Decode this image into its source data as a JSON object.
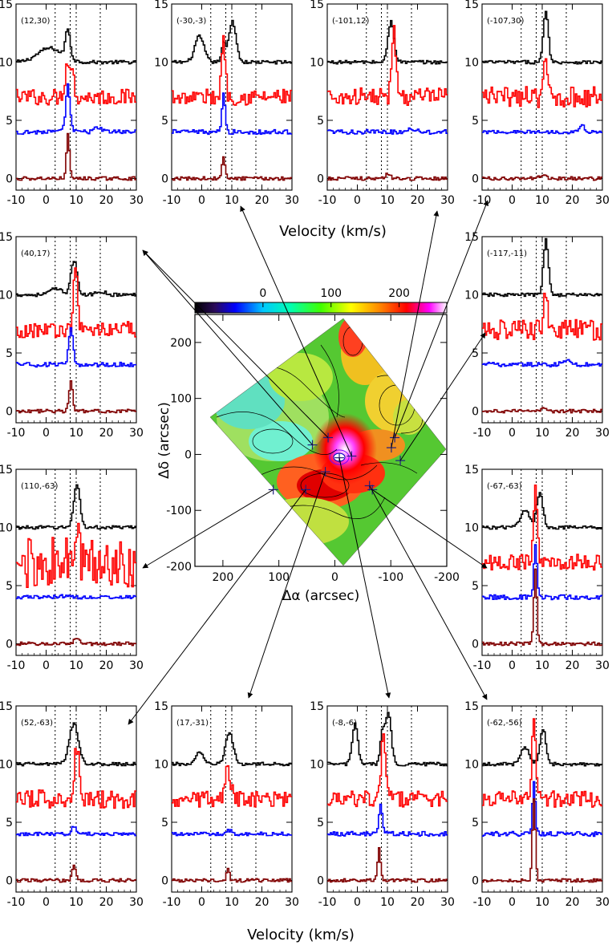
{
  "figure": {
    "velocity_label": "Velocity (km/s)"
  },
  "chart_data": [
    {
      "type": "line",
      "kind": "spectra-panel-set",
      "xlabel": "Velocity (km/s)",
      "xlim": [
        -10,
        30
      ],
      "ylim": [
        -1,
        15
      ],
      "xticks": [
        -10,
        0,
        10,
        20,
        30
      ],
      "yticks": [
        0,
        5,
        10,
        15
      ],
      "dotted_vlines": [
        3,
        8,
        10,
        18
      ],
      "series_colors": [
        "#000000",
        "#ff0000",
        "#0000ff",
        "#800000"
      ],
      "series_offsets": [
        10,
        7,
        4,
        0
      ],
      "panels": [
        {
          "label": "(12,30)",
          "show_y": true,
          "show_x": true,
          "peaks": [
            [
              [
                1,
                4,
                1.2
              ],
              [
                7,
                0.8,
                2.5
              ]
            ],
            [
              [
                7,
                0.9,
                3
              ],
              [
                8.5,
                0.7,
                1.5
              ]
            ],
            [
              [
                7,
                0.7,
                4
              ],
              [
                17,
                1.5,
                0.3
              ]
            ],
            [
              [
                7,
                0.5,
                3.8
              ]
            ]
          ],
          "noise": [
            0.15,
            0.7,
            0.2,
            0.15
          ]
        },
        {
          "label": "(-30,-3)",
          "show_y": true,
          "show_x": true,
          "peaks": [
            [
              [
                -1,
                1.5,
                2.2
              ],
              [
                10,
                1.2,
                3.5
              ],
              [
                7,
                0.7,
                1.5
              ]
            ],
            [
              [
                7,
                0.6,
                5.5
              ]
            ],
            [
              [
                7,
                0.5,
                3.5
              ]
            ],
            [
              [
                7,
                0.5,
                1.8
              ]
            ]
          ],
          "noise": [
            0.15,
            0.7,
            0.2,
            0.15
          ]
        },
        {
          "label": "(-101,12)",
          "show_y": true,
          "show_x": true,
          "peaks": [
            [
              [
                11,
                1.0,
                3.5
              ]
            ],
            [
              [
                12,
                0.7,
                5.5
              ]
            ],
            [
              [
                18,
                1.5,
                0.3
              ]
            ],
            [
              [
                10,
                0.8,
                0.4
              ]
            ]
          ],
          "noise": [
            0.15,
            0.8,
            0.2,
            0.15
          ]
        },
        {
          "label": "(-107,30)",
          "show_y": true,
          "show_x": true,
          "peaks": [
            [
              [
                11,
                0.8,
                4.5
              ]
            ],
            [
              [
                11,
                0.6,
                3.2
              ]
            ],
            [
              [
                23,
                1.0,
                0.5
              ]
            ],
            [
              [
                10,
                0.8,
                0.4
              ]
            ]
          ],
          "noise": [
            0.15,
            0.9,
            0.15,
            0.15
          ]
        },
        {
          "label": "(40,17)",
          "show_y": true,
          "show_x": true,
          "peaks": [
            [
              [
                3,
                2,
                0.5
              ],
              [
                9,
                1.0,
                3.0
              ],
              [
                18,
                1.5,
                0.3
              ]
            ],
            [
              [
                9.5,
                0.6,
                6
              ]
            ],
            [
              [
                8,
                0.7,
                3.0
              ]
            ],
            [
              [
                8,
                0.6,
                2.5
              ]
            ]
          ],
          "noise": [
            0.15,
            0.7,
            0.2,
            0.15
          ]
        },
        {
          "label": "(-117,-11)",
          "show_y": true,
          "show_x": true,
          "peaks": [
            [
              [
                11,
                0.8,
                4.8
              ]
            ],
            [
              [
                11,
                0.6,
                3.5
              ]
            ],
            [
              [
                18,
                1.5,
                0.3
              ]
            ],
            [
              [
                10,
                0.8,
                0.3
              ]
            ]
          ],
          "noise": [
            0.15,
            0.9,
            0.2,
            0.15
          ]
        },
        {
          "label": "(110,-63)",
          "show_y": true,
          "show_x": true,
          "peaks": [
            [
              [
                10,
                1.0,
                3.8
              ]
            ],
            [
              [
                10,
                0.7,
                2.5
              ]
            ],
            [
              [
                5,
                2,
                0.1
              ]
            ],
            [
              [
                10,
                0.8,
                0.5
              ]
            ]
          ],
          "noise": [
            0.15,
            2.2,
            0.15,
            0.15
          ]
        },
        {
          "label": "(-67,-63)",
          "show_y": true,
          "show_x": true,
          "peaks": [
            [
              [
                4,
                1.5,
                1.5
              ],
              [
                9,
                1.0,
                3.0
              ]
            ],
            [
              [
                7.5,
                0.6,
                6.5
              ]
            ],
            [
              [
                7.5,
                0.5,
                4.5
              ]
            ],
            [
              [
                7.5,
                0.5,
                6.5
              ]
            ]
          ],
          "noise": [
            0.15,
            0.7,
            0.2,
            0.15
          ]
        },
        {
          "label": "(52,-63)",
          "show_y": true,
          "show_x": true,
          "peaks": [
            [
              [
                9,
                1.5,
                3.5
              ]
            ],
            [
              [
                10,
                0.8,
                4.5
              ]
            ],
            [
              [
                9,
                0.8,
                0.6
              ]
            ],
            [
              [
                9,
                0.6,
                1.2
              ]
            ]
          ],
          "noise": [
            0.15,
            0.8,
            0.15,
            0.15
          ]
        },
        {
          "label": "(17,-31)",
          "show_y": true,
          "show_x": true,
          "peaks": [
            [
              [
                -1,
                1.2,
                1.0
              ],
              [
                9,
                1.3,
                2.6
              ]
            ],
            [
              [
                8.5,
                0.9,
                2.5
              ]
            ],
            [
              [
                9,
                0.8,
                0.3
              ]
            ],
            [
              [
                8.5,
                0.5,
                1.0
              ]
            ]
          ],
          "noise": [
            0.15,
            0.7,
            0.15,
            0.15
          ]
        },
        {
          "label": "(-8,-6)",
          "show_y": true,
          "show_x": true,
          "peaks": [
            [
              [
                -1,
                0.9,
                3.5
              ],
              [
                10,
                1.0,
                4.5
              ],
              [
                8,
                0.6,
                2.5
              ]
            ],
            [
              [
                8.5,
                0.7,
                6
              ]
            ],
            [
              [
                7.5,
                0.5,
                2.6
              ]
            ],
            [
              [
                7,
                0.5,
                2.8
              ]
            ]
          ],
          "noise": [
            0.15,
            0.7,
            0.2,
            0.15
          ]
        },
        {
          "label": "(-62,-56)",
          "show_y": true,
          "show_x": true,
          "peaks": [
            [
              [
                4,
                1.3,
                1.5
              ],
              [
                10,
                1.0,
                3.0
              ]
            ],
            [
              [
                7,
                0.6,
                7.5
              ]
            ],
            [
              [
                7,
                0.5,
                4.3
              ]
            ],
            [
              [
                7,
                0.5,
                7
              ]
            ]
          ],
          "noise": [
            0.15,
            0.7,
            0.2,
            0.15
          ]
        }
      ]
    },
    {
      "type": "heatmap",
      "kind": "map",
      "xlabel": "Δα (arcsec)",
      "ylabel": "Δδ (arcsec)",
      "xlim": [
        250,
        -200
      ],
      "ylim": [
        -200,
        250
      ],
      "xticks": [
        200,
        100,
        0,
        -100,
        -200
      ],
      "yticks": [
        -200,
        -100,
        0,
        100,
        200
      ],
      "colorbar": {
        "ticks": [
          0,
          100,
          200
        ],
        "range": [
          -100,
          270
        ]
      },
      "markers": [
        [
          12,
          30
        ],
        [
          -30,
          -3
        ],
        [
          -101,
          12
        ],
        [
          -107,
          30
        ],
        [
          40,
          17
        ],
        [
          -117,
          -11
        ],
        [
          110,
          -63
        ],
        [
          -67,
          -63
        ],
        [
          52,
          -63
        ],
        [
          17,
          -31
        ],
        [
          -8,
          -6
        ],
        [
          -62,
          -56
        ]
      ]
    }
  ]
}
